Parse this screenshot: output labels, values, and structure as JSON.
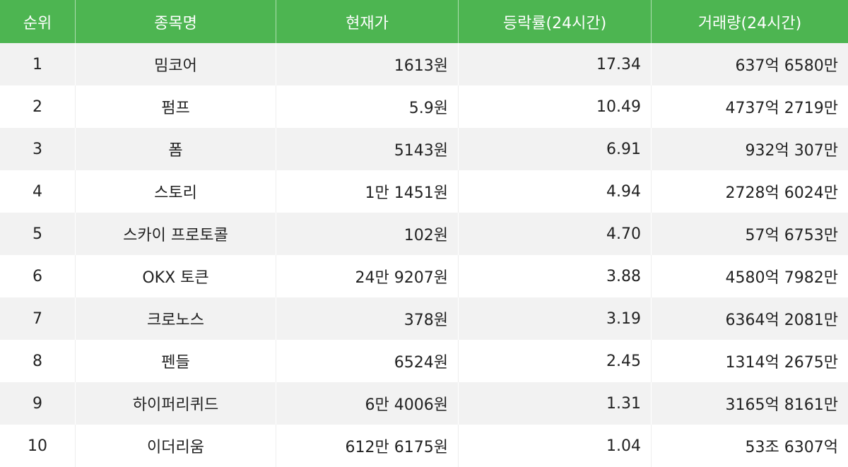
{
  "colors": {
    "header_bg": "#4db551",
    "header_text": "#ffffff",
    "row_alt_bg": "#f2f2f2",
    "row_bg": "#ffffff",
    "text": "#222222"
  },
  "table": {
    "headers": [
      "순위",
      "종목명",
      "현재가",
      "등락률(24시간)",
      "거래량(24시간)"
    ],
    "rows": [
      {
        "rank": "1",
        "name": "밈코어",
        "price": "1613원",
        "change": "17.34",
        "volume": "637억 6580만"
      },
      {
        "rank": "2",
        "name": "펌프",
        "price": "5.9원",
        "change": "10.49",
        "volume": "4737억 2719만"
      },
      {
        "rank": "3",
        "name": "폼",
        "price": "5143원",
        "change": "6.91",
        "volume": "932억 307만"
      },
      {
        "rank": "4",
        "name": "스토리",
        "price": "1만 1451원",
        "change": "4.94",
        "volume": "2728억 6024만"
      },
      {
        "rank": "5",
        "name": "스카이 프로토콜",
        "price": "102원",
        "change": "4.70",
        "volume": "57억 6753만"
      },
      {
        "rank": "6",
        "name": "OKX 토큰",
        "price": "24만 9207원",
        "change": "3.88",
        "volume": "4580억 7982만"
      },
      {
        "rank": "7",
        "name": "크로노스",
        "price": "378원",
        "change": "3.19",
        "volume": "6364억 2081만"
      },
      {
        "rank": "8",
        "name": "펜들",
        "price": "6524원",
        "change": "2.45",
        "volume": "1314억 2675만"
      },
      {
        "rank": "9",
        "name": "하이퍼리퀴드",
        "price": "6만 4006원",
        "change": "1.31",
        "volume": "3165억 8161만"
      },
      {
        "rank": "10",
        "name": "이더리움",
        "price": "612만 6175원",
        "change": "1.04",
        "volume": "53조 6307억"
      }
    ]
  }
}
